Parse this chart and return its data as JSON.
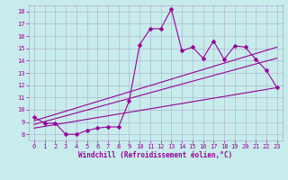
{
  "xlabel": "Windchill (Refroidissement éolien,°C)",
  "bg_color": "#c8ecec",
  "line_color": "#990099",
  "grid_color": "#aaaacc",
  "xlim": [
    -0.5,
    23.5
  ],
  "ylim": [
    7.5,
    18.5
  ],
  "xticks": [
    0,
    1,
    2,
    3,
    4,
    5,
    6,
    7,
    8,
    9,
    10,
    11,
    12,
    13,
    14,
    15,
    16,
    17,
    18,
    19,
    20,
    21,
    22,
    23
  ],
  "yticks": [
    8,
    9,
    10,
    11,
    12,
    13,
    14,
    15,
    16,
    17,
    18
  ],
  "line1_x": [
    0,
    1,
    2,
    3,
    4,
    5,
    6,
    7,
    8,
    9,
    10,
    11,
    12,
    13,
    14,
    15,
    16,
    17,
    18,
    19,
    20,
    21,
    22,
    23
  ],
  "line1_y": [
    9.4,
    8.9,
    8.9,
    8.0,
    8.0,
    8.3,
    8.5,
    8.6,
    8.6,
    10.7,
    15.3,
    16.6,
    16.6,
    18.2,
    14.8,
    15.1,
    14.2,
    15.6,
    14.1,
    15.2,
    15.1,
    14.1,
    13.2,
    11.8
  ],
  "line2_x": [
    0,
    23
  ],
  "line2_y": [
    9.1,
    15.1
  ],
  "line3_x": [
    0,
    23
  ],
  "line3_y": [
    8.8,
    14.2
  ],
  "line4_x": [
    0,
    23
  ],
  "line4_y": [
    8.5,
    11.8
  ],
  "tick_fontsize": 5.0,
  "xlabel_fontsize": 5.5,
  "lw": 0.8,
  "ms": 2.5
}
